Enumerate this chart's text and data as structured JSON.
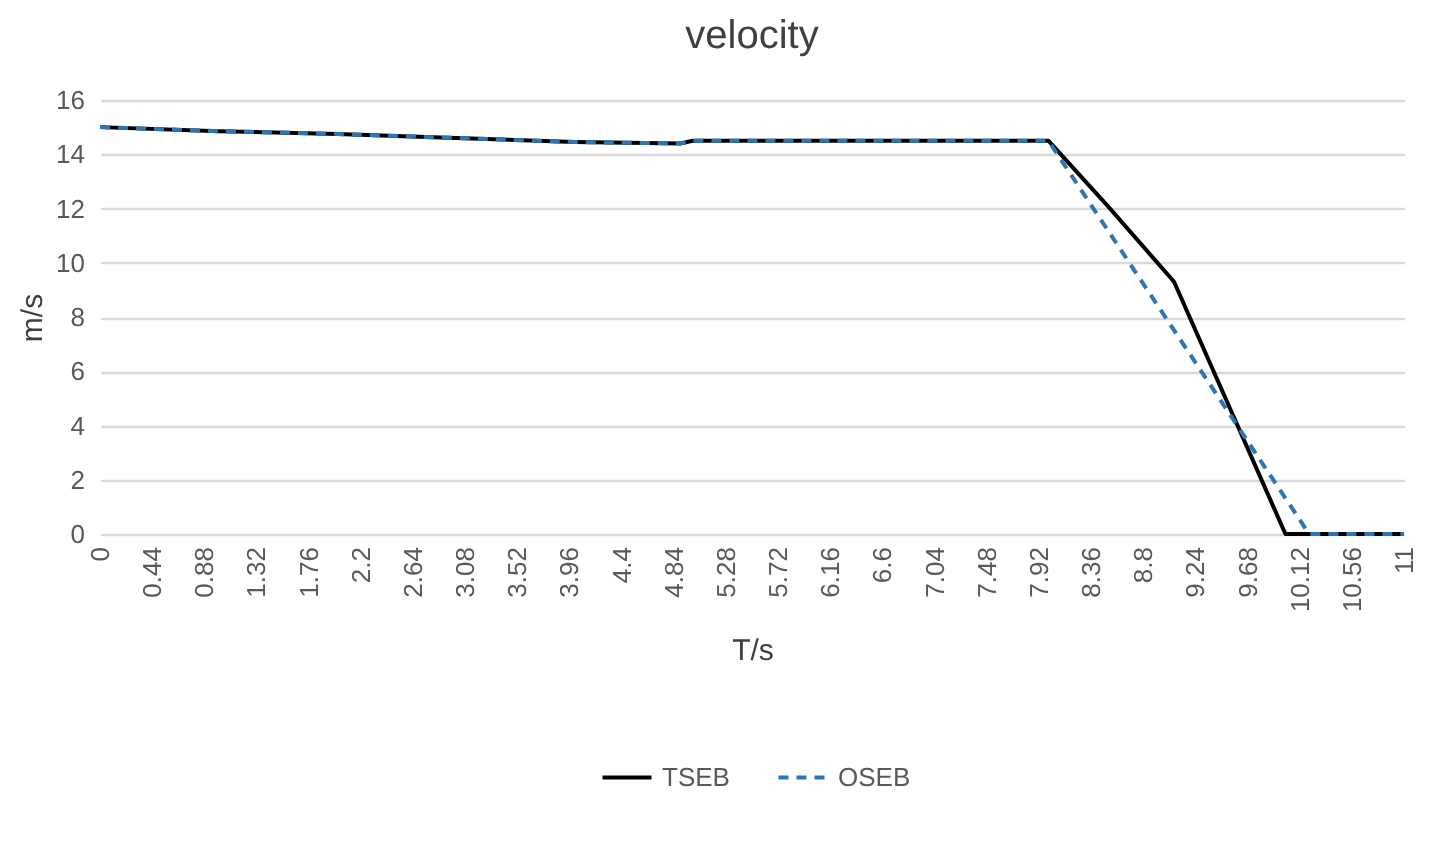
{
  "chart_data": {
    "type": "line",
    "title": "velocity",
    "xlabel": "T/s",
    "ylabel": "m/s",
    "xlim": [
      0,
      11
    ],
    "xticks": [
      0,
      0.44,
      0.88,
      1.32,
      1.76,
      2.2,
      2.64,
      3.08,
      3.52,
      3.96,
      4.4,
      4.84,
      5.28,
      5.72,
      6.16,
      6.6,
      7.04,
      7.48,
      7.92,
      8.36,
      8.8,
      9.24,
      9.68,
      10.12,
      10.56,
      11
    ],
    "ylim": [
      0,
      16
    ],
    "yticks": [
      0,
      2,
      4,
      6,
      8,
      10,
      12,
      14,
      16
    ],
    "grid": "y",
    "legend": "bottom",
    "marker": "none",
    "series": [
      {
        "name": "TSEB",
        "color": "#000000",
        "line_style": "solid",
        "x": [
          0,
          1,
          2,
          3,
          4,
          4.9,
          5.0,
          8.0,
          8.5,
          9.06,
          10.0,
          11
        ],
        "values": [
          15.0,
          14.85,
          14.75,
          14.6,
          14.45,
          14.4,
          14.5,
          14.5,
          12.1,
          9.3,
          0,
          0
        ]
      },
      {
        "name": "OSEB",
        "color": "#2e75b6",
        "line_style": "dashed",
        "x": [
          0,
          1,
          2,
          3,
          4,
          4.9,
          5.0,
          8.0,
          10.2,
          11
        ],
        "values": [
          15.0,
          14.85,
          14.75,
          14.6,
          14.45,
          14.4,
          14.5,
          14.5,
          0,
          0
        ]
      }
    ]
  }
}
